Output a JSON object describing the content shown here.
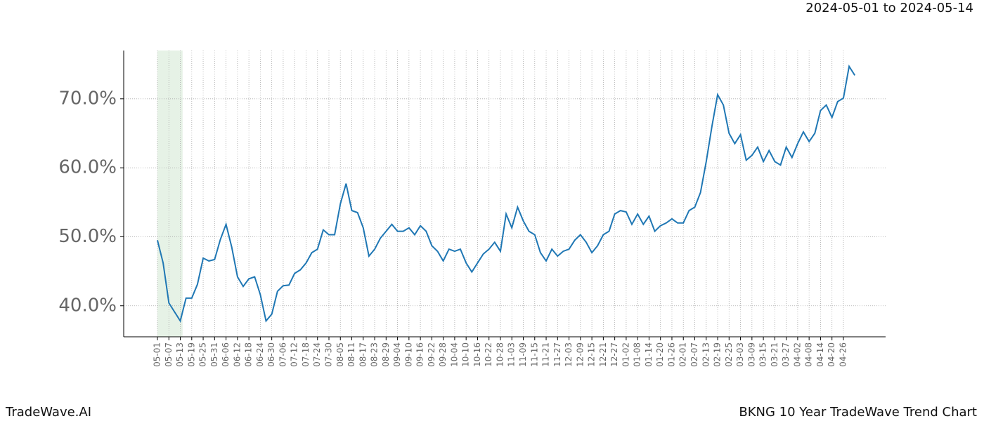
{
  "chart_data": {
    "type": "line",
    "title": "2024-05-01 to 2024-05-14",
    "footer_left": "TradeWave.AI",
    "footer_right": "BKNG 10 Year TradeWave Trend Chart",
    "categories": [
      "05-01",
      null,
      "05-07",
      null,
      "05-13",
      null,
      "05-19",
      null,
      "05-25",
      null,
      "05-31",
      null,
      "06-06",
      null,
      "06-12",
      null,
      "06-18",
      null,
      "06-24",
      null,
      "06-30",
      null,
      "07-06",
      null,
      "07-12",
      null,
      "07-18",
      null,
      "07-24",
      null,
      "07-30",
      null,
      "08-05",
      null,
      "08-11",
      null,
      "08-17",
      null,
      "08-23",
      null,
      "08-29",
      null,
      "09-04",
      null,
      "09-10",
      null,
      "09-16",
      null,
      "09-22",
      null,
      "09-28",
      null,
      "10-04",
      null,
      "10-10",
      null,
      "10-16",
      null,
      "10-22",
      null,
      "10-28",
      null,
      "11-03",
      null,
      "11-09",
      null,
      "11-15",
      null,
      "11-21",
      null,
      "11-27",
      null,
      "12-03",
      null,
      "12-09",
      null,
      "12-15",
      null,
      "12-21",
      null,
      "12-27",
      null,
      "01-02",
      null,
      "01-08",
      null,
      "01-14",
      null,
      "01-20",
      null,
      "01-26",
      null,
      "02-01",
      null,
      "02-07",
      null,
      "02-13",
      null,
      "02-19",
      null,
      "02-25",
      null,
      "03-03",
      null,
      "03-09",
      null,
      "03-15",
      null,
      "03-21",
      null,
      "03-27",
      null,
      "04-02",
      null,
      "04-08",
      null,
      "04-14",
      null,
      "04-20",
      null,
      "04-26",
      null,
      null
    ],
    "series": [
      {
        "color": "#1f77b4",
        "values": [
          49.5,
          46.2,
          40.4,
          39.1,
          37.8,
          41.1,
          41.1,
          43.1,
          46.9,
          46.5,
          46.7,
          49.6,
          51.8,
          48.5,
          44.2,
          42.8,
          43.9,
          44.2,
          41.6,
          37.8,
          38.8,
          42.1,
          42.9,
          43.0,
          44.7,
          45.2,
          46.2,
          47.7,
          48.2,
          51.0,
          50.3,
          50.3,
          54.8,
          57.7,
          53.8,
          53.5,
          51.3,
          47.2,
          48.2,
          49.8,
          50.8,
          51.8,
          50.8,
          50.8,
          51.3,
          50.3,
          51.6,
          50.8,
          48.7,
          47.9,
          46.5,
          48.2,
          47.9,
          48.2,
          46.2,
          44.9,
          46.2,
          47.5,
          48.2,
          49.2,
          47.9,
          53.3,
          51.3,
          54.3,
          52.3,
          50.8,
          50.3,
          47.7,
          46.5,
          48.2,
          47.2,
          47.9,
          48.2,
          49.5,
          50.3,
          49.2,
          47.7,
          48.7,
          50.3,
          50.8,
          53.3,
          53.8,
          53.6,
          51.8,
          53.3,
          51.8,
          53.0,
          50.8,
          51.6,
          52.0,
          52.6,
          52.0,
          52.0,
          53.8,
          54.3,
          56.4,
          60.9,
          66.0,
          70.6,
          69.1,
          65.0,
          63.5,
          64.8,
          61.1,
          61.8,
          63.0,
          60.9,
          62.5,
          60.9,
          60.4,
          63.0,
          61.5,
          63.5,
          65.2,
          63.8,
          65.0,
          68.3,
          69.1,
          67.3,
          69.6,
          70.1,
          74.7,
          73.4
        ]
      }
    ],
    "highlight": {
      "from": 0,
      "to": 4.4,
      "color": "#e6f2e6"
    },
    "ylim": [
      35.5,
      77.0
    ],
    "yticks": [
      {
        "value": 40,
        "label": "40.0%"
      },
      {
        "value": 50,
        "label": "50.0%"
      },
      {
        "value": 60,
        "label": "60.0%"
      },
      {
        "value": 70,
        "label": "70.0%"
      }
    ],
    "grid": true
  }
}
